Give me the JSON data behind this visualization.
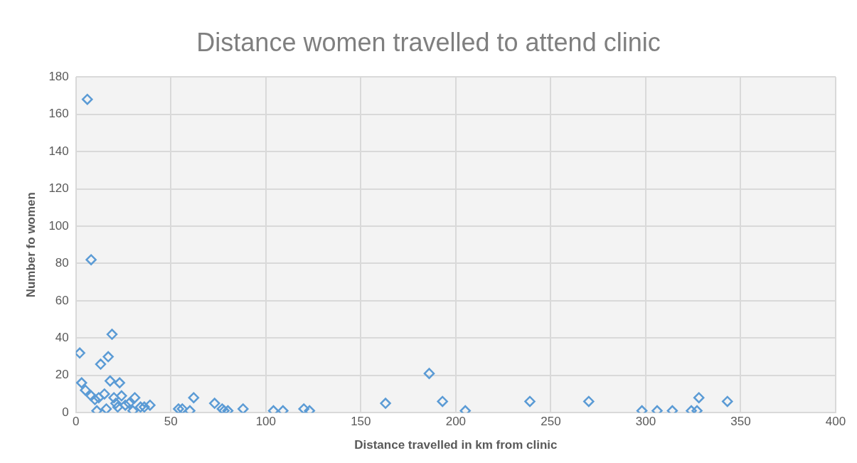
{
  "chart_data": {
    "type": "scatter",
    "title": "Distance women travelled to attend clinic",
    "xlabel": "Distance travelled in km from clinic",
    "ylabel": "Number fo women",
    "xlim": [
      0,
      400
    ],
    "xticks": [
      0,
      50,
      100,
      150,
      200,
      250,
      300,
      350,
      400
    ],
    "ylim": [
      0,
      180
    ],
    "yticks": [
      0,
      20,
      40,
      60,
      80,
      100,
      120,
      140,
      160,
      180
    ],
    "grid": true,
    "legend": false,
    "marker": "diamond",
    "series": [
      {
        "color": "#5b9bd5",
        "x": [
          6,
          8,
          19,
          2,
          17,
          13,
          3,
          5,
          18,
          23,
          8,
          10,
          11,
          12,
          15,
          16,
          20,
          21,
          22,
          24,
          26,
          27,
          28,
          30,
          31,
          34,
          36,
          39,
          54,
          56,
          60,
          62,
          73,
          77,
          78,
          80,
          88,
          104,
          109,
          120,
          123,
          163,
          186,
          193,
          205,
          239,
          270,
          298,
          306,
          314,
          324,
          327,
          328,
          343
        ],
        "values": [
          168,
          82,
          42,
          32,
          30,
          26,
          16,
          12,
          17,
          16,
          9,
          7,
          1,
          8,
          10,
          2,
          8,
          5,
          3,
          9,
          4,
          null,
          5,
          1,
          8,
          3,
          3,
          4,
          2,
          2,
          1,
          8,
          5,
          2,
          1,
          1,
          2,
          1,
          1,
          2,
          1,
          5,
          21,
          6,
          1,
          6,
          6,
          1,
          1,
          1,
          1,
          1,
          8,
          6
        ]
      }
    ]
  }
}
